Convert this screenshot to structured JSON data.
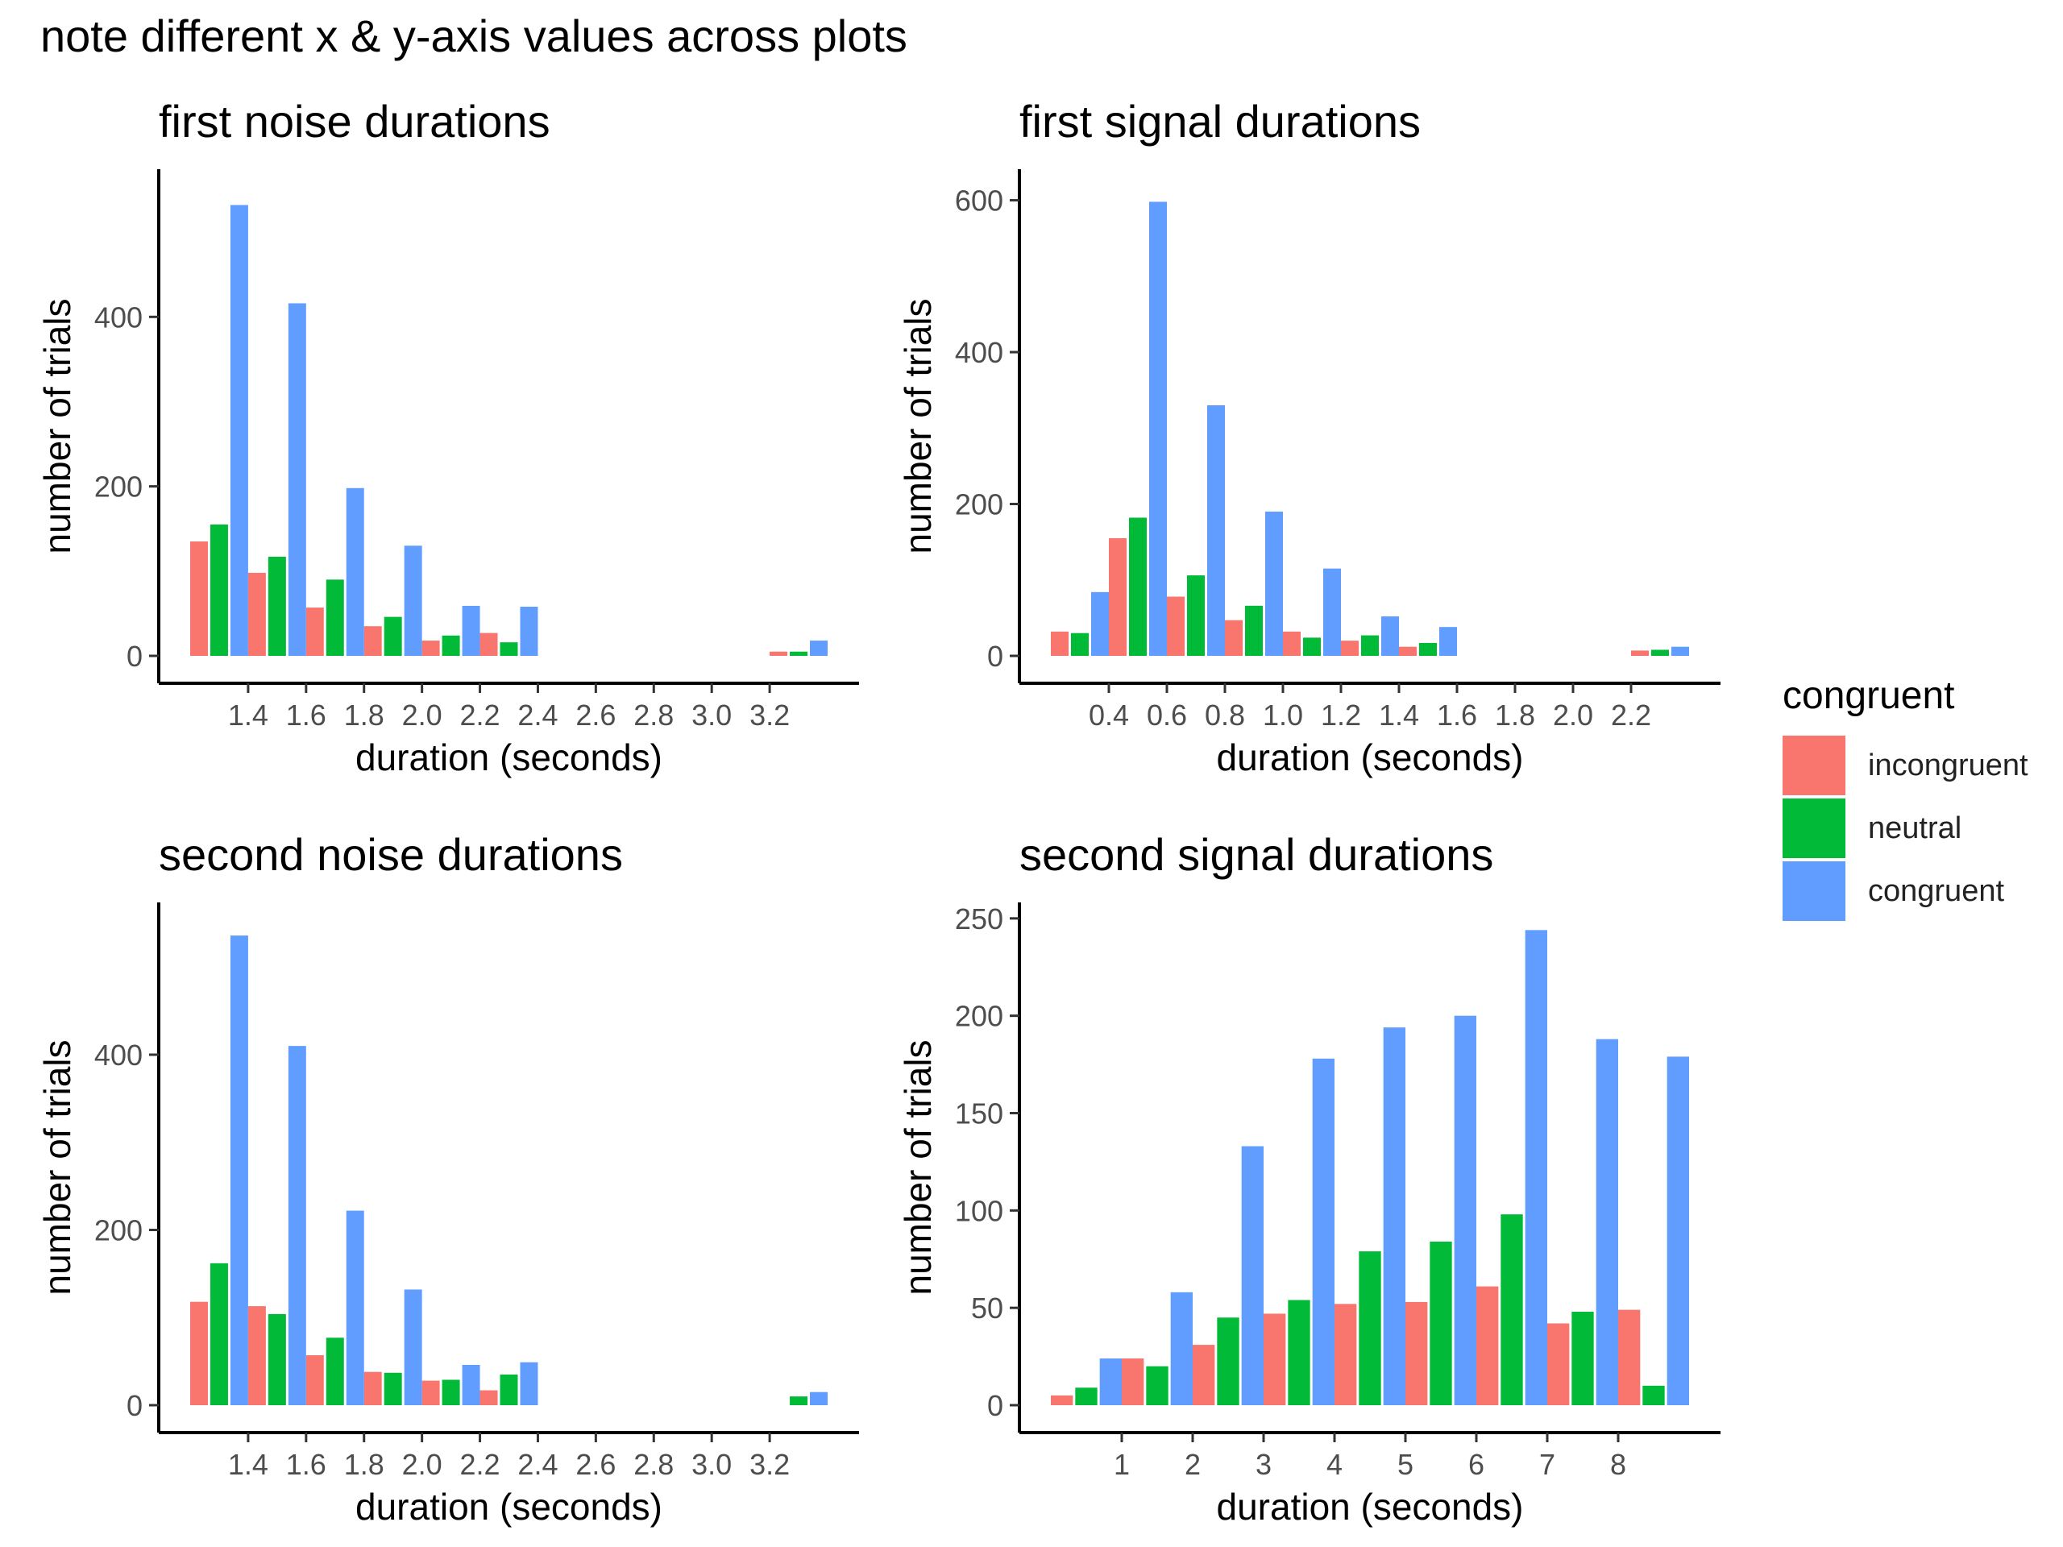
{
  "title": "note different x & y-axis values across plots",
  "legend": {
    "title": "congruent",
    "entries": [
      {
        "label": "incongruent",
        "color": "#F8766D"
      },
      {
        "label": "neutral",
        "color": "#00BA38"
      },
      {
        "label": "congruent",
        "color": "#619CFF"
      }
    ]
  },
  "chart_data": [
    {
      "type": "bar",
      "title": "first noise durations",
      "xlabel": "duration (seconds)",
      "ylabel": "number of trials",
      "x_ticks": [
        "1.4",
        "1.6",
        "1.8",
        "2.0",
        "2.2",
        "2.4",
        "2.6",
        "2.8",
        "3.0",
        "3.2"
      ],
      "y_ticks": [
        0,
        200,
        400
      ],
      "ylim": [
        0,
        560
      ],
      "categories": [
        "1.3",
        "1.5",
        "1.7",
        "1.9",
        "2.1",
        "2.3",
        "2.5",
        "2.7",
        "2.9",
        "3.1",
        "3.3"
      ],
      "series": [
        {
          "name": "incongruent",
          "values": [
            135,
            98,
            57,
            35,
            18,
            27,
            0,
            0,
            0,
            0,
            5
          ]
        },
        {
          "name": "neutral",
          "values": [
            155,
            117,
            90,
            46,
            24,
            16,
            0,
            0,
            0,
            0,
            5
          ]
        },
        {
          "name": "congruent",
          "values": [
            532,
            416,
            198,
            130,
            59,
            58,
            0,
            0,
            0,
            0,
            18
          ]
        }
      ]
    },
    {
      "type": "bar",
      "title": "first signal durations",
      "xlabel": "duration (seconds)",
      "ylabel": "number of trials",
      "x_ticks": [
        "0.4",
        "0.6",
        "0.8",
        "1.0",
        "1.2",
        "1.4",
        "1.6",
        "1.8",
        "2.0",
        "2.2"
      ],
      "y_ticks": [
        0,
        200,
        400,
        600
      ],
      "ylim": [
        0,
        625
      ],
      "categories": [
        "0.3",
        "0.5",
        "0.7",
        "0.9",
        "1.1",
        "1.3",
        "1.5",
        "1.7",
        "1.9",
        "2.1",
        "2.3"
      ],
      "series": [
        {
          "name": "incongruent",
          "values": [
            32,
            155,
            78,
            47,
            32,
            20,
            12,
            0,
            0,
            0,
            7
          ]
        },
        {
          "name": "neutral",
          "values": [
            30,
            182,
            106,
            66,
            24,
            27,
            17,
            0,
            0,
            0,
            8
          ]
        },
        {
          "name": "congruent",
          "values": [
            84,
            598,
            330,
            190,
            115,
            52,
            38,
            0,
            0,
            0,
            12
          ]
        }
      ]
    },
    {
      "type": "bar",
      "title": "second noise durations",
      "xlabel": "duration (seconds)",
      "ylabel": "number of trials",
      "x_ticks": [
        "1.4",
        "1.6",
        "1.8",
        "2.0",
        "2.2",
        "2.4",
        "2.6",
        "2.8",
        "3.0",
        "3.2"
      ],
      "y_ticks": [
        0,
        200,
        400
      ],
      "ylim": [
        0,
        560
      ],
      "categories": [
        "1.3",
        "1.5",
        "1.7",
        "1.9",
        "2.1",
        "2.3",
        "2.5",
        "2.7",
        "2.9",
        "3.1",
        "3.3"
      ],
      "series": [
        {
          "name": "incongruent",
          "values": [
            118,
            113,
            57,
            38,
            28,
            17,
            0,
            0,
            0,
            0,
            0
          ]
        },
        {
          "name": "neutral",
          "values": [
            162,
            104,
            77,
            37,
            29,
            35,
            0,
            0,
            0,
            0,
            10
          ]
        },
        {
          "name": "congruent",
          "values": [
            536,
            410,
            222,
            132,
            46,
            49,
            0,
            0,
            0,
            0,
            15
          ]
        }
      ]
    },
    {
      "type": "bar",
      "title": "second signal durations",
      "xlabel": "duration (seconds)",
      "ylabel": "number of trials",
      "x_ticks": [
        "1",
        "2",
        "3",
        "4",
        "5",
        "6",
        "7",
        "8"
      ],
      "y_ticks": [
        0,
        50,
        100,
        150,
        200,
        250
      ],
      "ylim": [
        0,
        252
      ],
      "categories": [
        "0.5",
        "1.5",
        "2.5",
        "3.5",
        "4.5",
        "5.5",
        "6.5",
        "7.5",
        "8.5"
      ],
      "series": [
        {
          "name": "incongruent",
          "values": [
            5,
            24,
            31,
            47,
            52,
            53,
            61,
            42,
            49
          ]
        },
        {
          "name": "neutral",
          "values": [
            9,
            20,
            45,
            54,
            79,
            84,
            98,
            48,
            10
          ]
        },
        {
          "name": "congruent",
          "values": [
            24,
            58,
            133,
            178,
            194,
            200,
            244,
            188,
            179
          ]
        }
      ]
    }
  ]
}
